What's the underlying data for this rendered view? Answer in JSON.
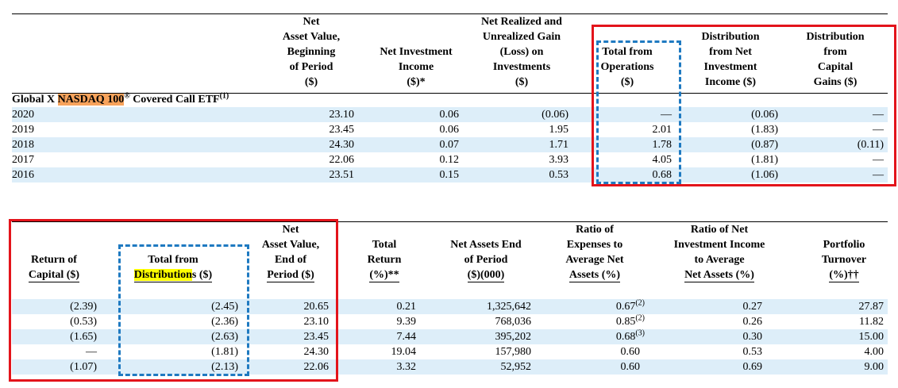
{
  "table1": {
    "headers": [
      [
        "Net",
        "Asset Value,",
        "Beginning",
        "of Period",
        "($)"
      ],
      [
        "Net Investment",
        "Income",
        "($)*"
      ],
      [
        "Net Realized and",
        "Unrealized Gain",
        "(Loss) on",
        "Investments",
        "($)"
      ],
      [
        "Total from",
        "Operations",
        "($)"
      ],
      [
        "Distribution",
        "from Net",
        "Investment",
        "Income ($)"
      ],
      [
        "Distribution",
        "from",
        "Capital",
        "Gains ($)"
      ]
    ],
    "fund": {
      "prefix": "Global X ",
      "highlight": "NASDAQ 100",
      "mark": "®",
      "rest": " Covered Call ETF",
      "note": "(1)"
    },
    "rows": [
      [
        "2020",
        "23.10",
        "0.06",
        "(0.06)",
        "—",
        "(0.06)",
        "—"
      ],
      [
        "2019",
        "23.45",
        "0.06",
        "1.95",
        "2.01",
        "(1.83)",
        "—"
      ],
      [
        "2018",
        "24.30",
        "0.07",
        "1.71",
        "1.78",
        "(0.87)",
        "(0.11)"
      ],
      [
        "2017",
        "22.06",
        "0.12",
        "3.93",
        "4.05",
        "(1.81)",
        "—"
      ],
      [
        "2016",
        "23.51",
        "0.15",
        "0.53",
        "0.68",
        "(1.06)",
        "—"
      ]
    ]
  },
  "table2": {
    "headers": [
      [
        "Return of",
        "Capital ($)"
      ],
      [
        "Total from",
        {
          "highlight": "Distribution",
          "rest": "s ($)"
        }
      ],
      [
        "Net",
        "Asset Value,",
        "End of",
        "Period ($)"
      ],
      [
        "Total",
        "Return",
        "(%)**"
      ],
      [
        "Net Assets End",
        "of Period",
        "($)(000)"
      ],
      [
        "Ratio of",
        "Expenses to",
        "Average Net",
        "Assets (%)"
      ],
      [
        "Ratio of Net",
        "Investment Income",
        "to Average",
        "Net Assets (%)"
      ],
      [
        "Portfolio",
        "Turnover",
        "(%)††"
      ]
    ],
    "rows": [
      [
        "(2.39)",
        "(2.45)",
        "20.65",
        "0.21",
        "1,325,642",
        {
          "value": "0.67",
          "note": "(2)"
        },
        "0.27",
        "27.87"
      ],
      [
        "(0.53)",
        "(2.36)",
        "23.10",
        "9.39",
        "768,036",
        {
          "value": "0.85",
          "note": "(2)"
        },
        "0.26",
        "11.82"
      ],
      [
        "(1.65)",
        "(2.63)",
        "23.45",
        "7.44",
        "395,202",
        {
          "value": "0.68",
          "note": "(3)"
        },
        "0.30",
        "15.00"
      ],
      [
        "—",
        "(1.81)",
        "24.30",
        "19.04",
        "157,980",
        "0.60",
        "0.53",
        "4.00"
      ],
      [
        "(1.07)",
        "(2.13)",
        "22.06",
        "3.32",
        "52,952",
        "0.60",
        "0.69",
        "9.00"
      ]
    ]
  }
}
